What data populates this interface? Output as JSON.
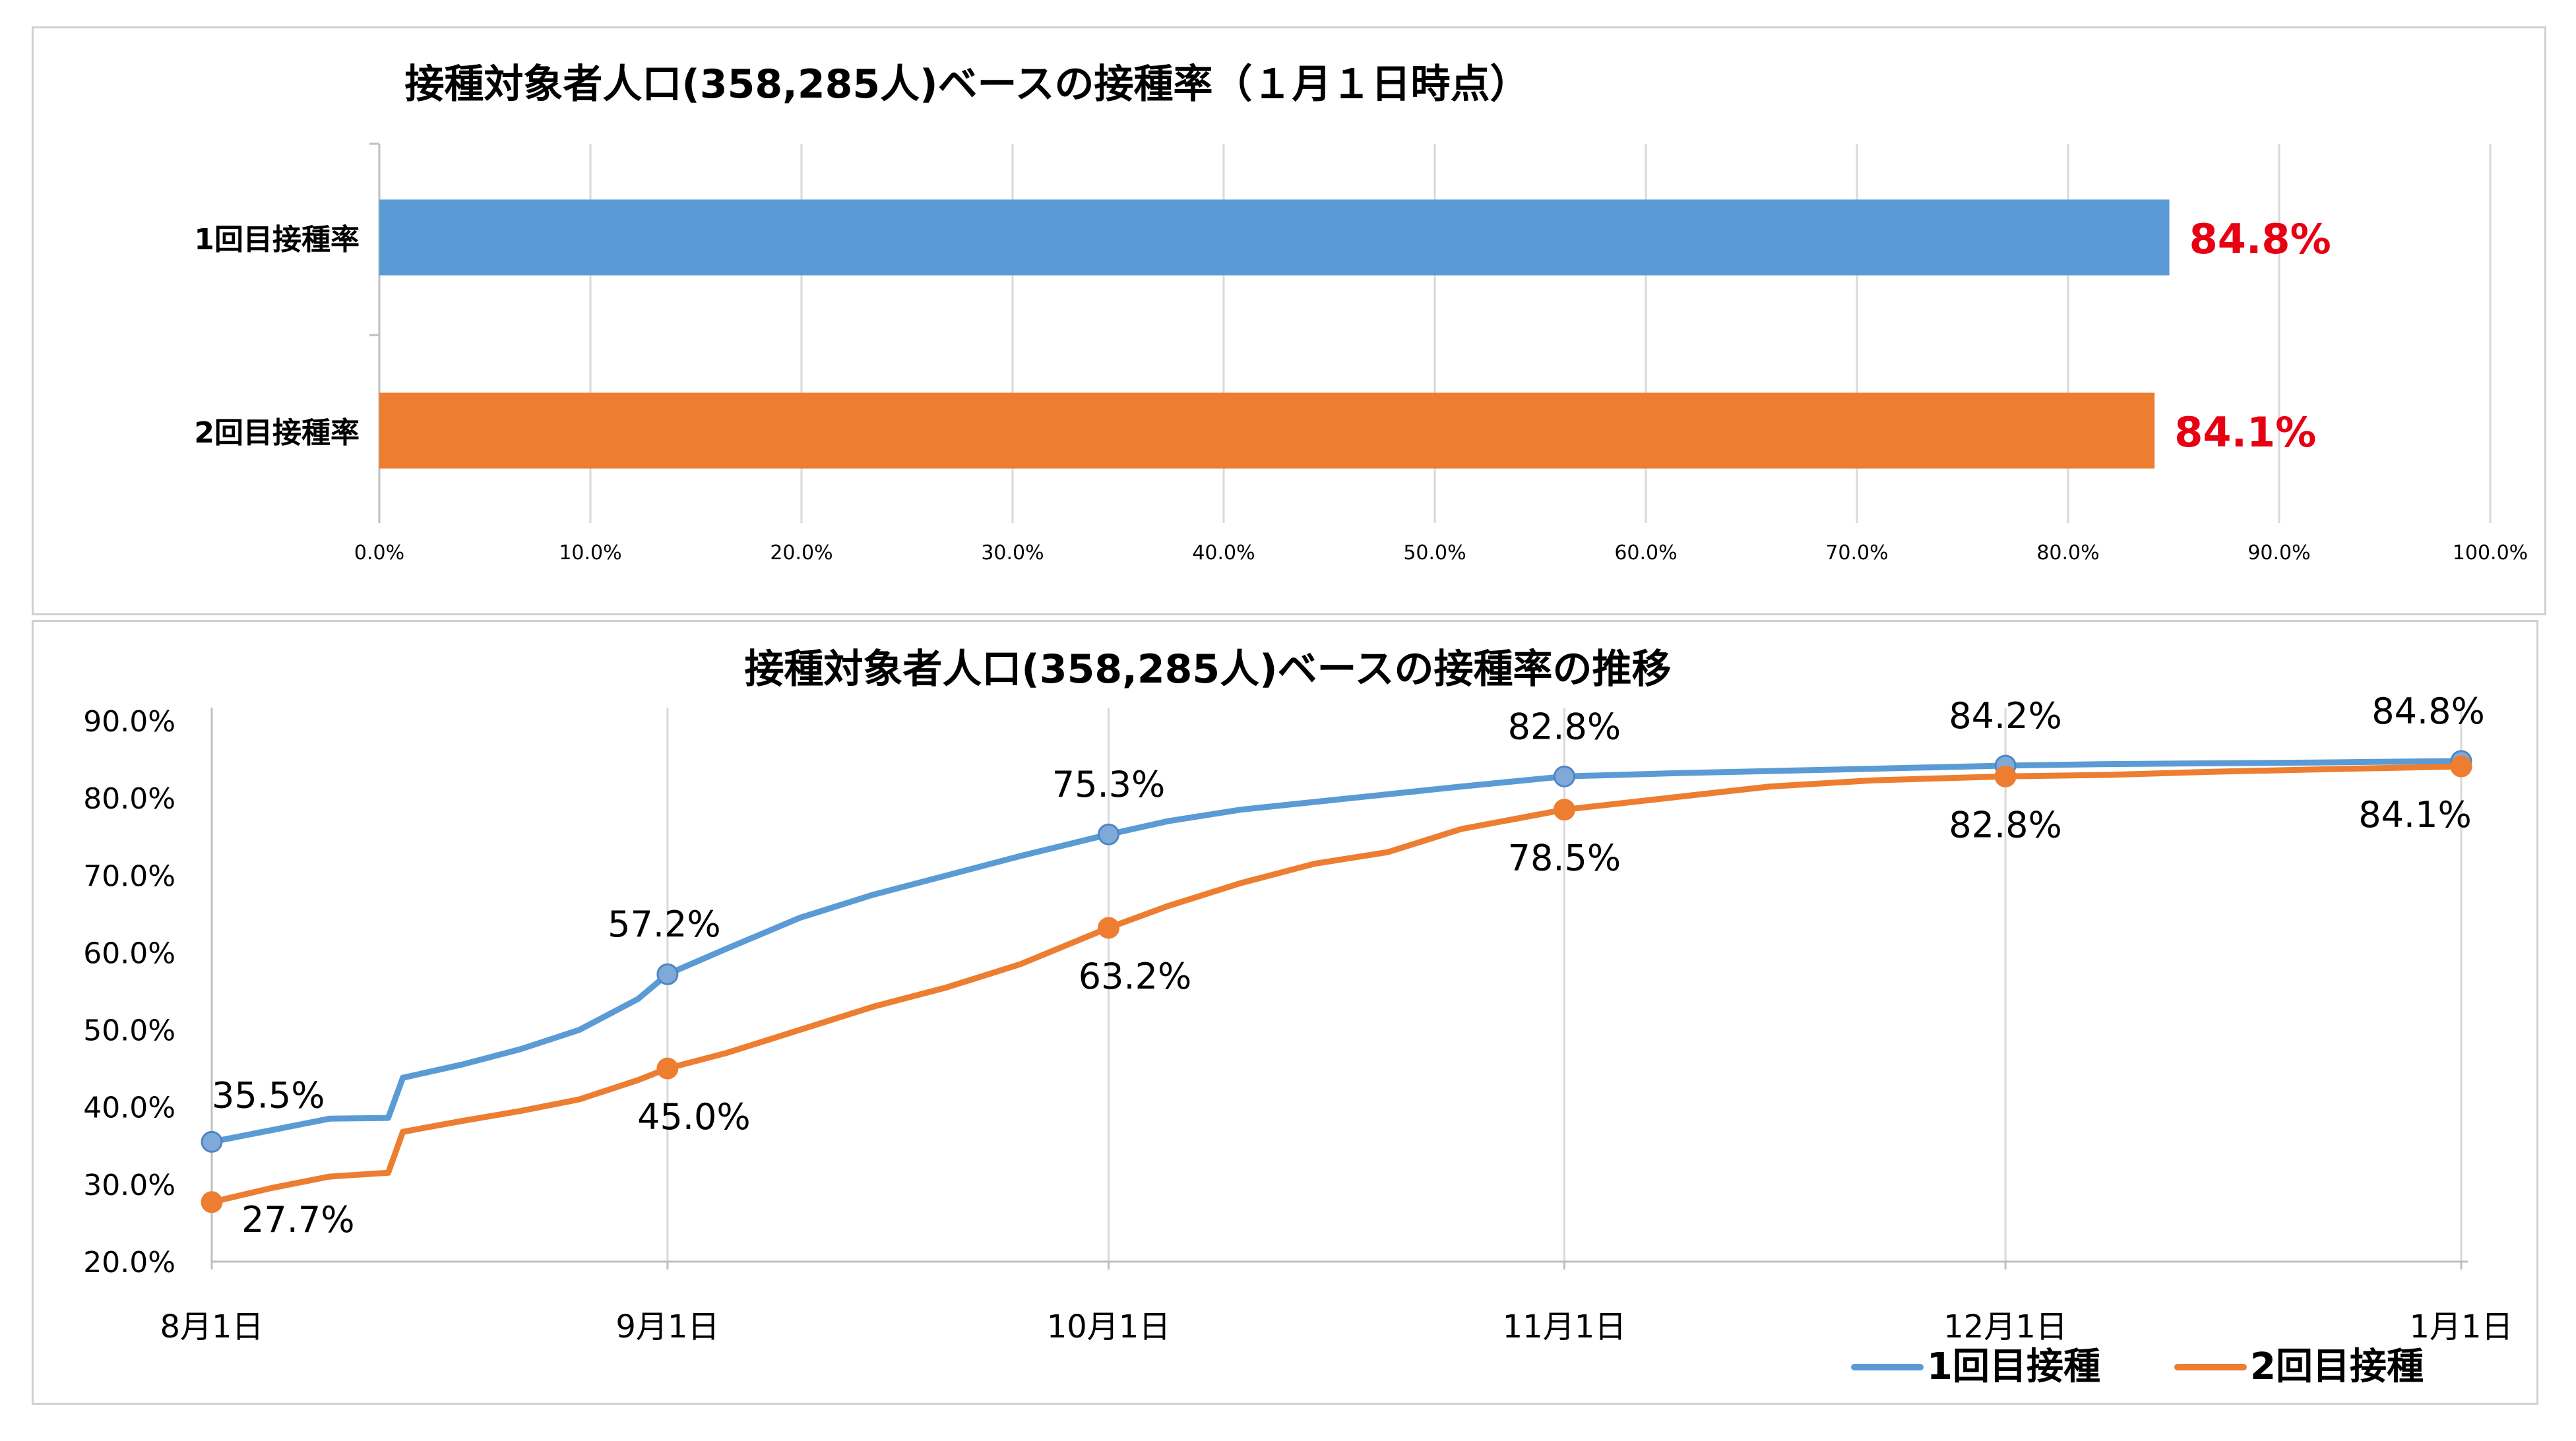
{
  "chart_data": [
    {
      "type": "bar",
      "orientation": "horizontal",
      "title": "接種対象者人口(358,285人)ベースの接種率（１月１日時点）",
      "categories": [
        "1回目接種率",
        "2回目接種率"
      ],
      "values": [
        84.8,
        84.1
      ],
      "value_labels": [
        "84.8%",
        "84.1%"
      ],
      "colors": [
        "#5b9bd5",
        "#ed7d31"
      ],
      "value_label_color": "#e60012",
      "xlim": [
        0,
        100
      ],
      "x_ticks": [
        "0.0%",
        "10.0%",
        "20.0%",
        "30.0%",
        "40.0%",
        "50.0%",
        "60.0%",
        "70.0%",
        "80.0%",
        "90.0%",
        "100.0%"
      ],
      "grid": true
    },
    {
      "type": "line",
      "title": "接種対象者人口(358,285人)ベースの接種率の推移",
      "x_tick_labels": [
        "8月1日",
        "9月1日",
        "10月1日",
        "11月1日",
        "12月1日",
        "1月1日"
      ],
      "y_ticks": [
        "20.0%",
        "30.0%",
        "40.0%",
        "50.0%",
        "60.0%",
        "70.0%",
        "80.0%",
        "90.0%"
      ],
      "ylim": [
        20,
        90
      ],
      "grid": "vertical",
      "legend_position": "bottom-right",
      "series": [
        {
          "name": "1回目接種",
          "color": "#5b9bd5",
          "x": [
            "8/1",
            "8/5",
            "8/9",
            "8/13",
            "8/14",
            "8/18",
            "8/22",
            "8/26",
            "8/30",
            "9/1",
            "9/5",
            "9/10",
            "9/15",
            "9/20",
            "9/25",
            "10/1",
            "10/5",
            "10/10",
            "10/15",
            "10/20",
            "10/25",
            "11/1",
            "11/8",
            "11/15",
            "11/22",
            "12/1",
            "12/8",
            "12/15",
            "12/22",
            "1/1"
          ],
          "values": [
            35.5,
            37.0,
            38.5,
            38.6,
            43.8,
            45.5,
            47.5,
            50.0,
            54.0,
            57.2,
            60.5,
            64.5,
            67.5,
            70.0,
            72.5,
            75.3,
            77.0,
            78.5,
            79.5,
            80.5,
            81.5,
            82.8,
            83.2,
            83.5,
            83.8,
            84.2,
            84.4,
            84.5,
            84.6,
            84.8
          ],
          "marker_labels": [
            {
              "x": "8/1",
              "value": 35.5,
              "label": "35.5%"
            },
            {
              "x": "9/1",
              "value": 57.2,
              "label": "57.2%"
            },
            {
              "x": "10/1",
              "value": 75.3,
              "label": "75.3%"
            },
            {
              "x": "11/1",
              "value": 82.8,
              "label": "82.8%"
            },
            {
              "x": "12/1",
              "value": 84.2,
              "label": "84.2%"
            },
            {
              "x": "1/1",
              "value": 84.8,
              "label": "84.8%"
            }
          ]
        },
        {
          "name": "2回目接種",
          "color": "#ed7d31",
          "x": [
            "8/1",
            "8/5",
            "8/9",
            "8/13",
            "8/14",
            "8/18",
            "8/22",
            "8/26",
            "8/30",
            "9/1",
            "9/5",
            "9/10",
            "9/15",
            "9/20",
            "9/25",
            "10/1",
            "10/5",
            "10/10",
            "10/15",
            "10/20",
            "10/25",
            "11/1",
            "11/8",
            "11/15",
            "11/22",
            "12/1",
            "12/8",
            "12/15",
            "12/22",
            "1/1"
          ],
          "values": [
            27.7,
            29.5,
            31.0,
            31.5,
            36.8,
            38.2,
            39.5,
            41.0,
            43.5,
            45.0,
            47.0,
            50.0,
            53.0,
            55.5,
            58.5,
            63.2,
            66.0,
            69.0,
            71.5,
            73.0,
            76.0,
            78.5,
            80.0,
            81.5,
            82.3,
            82.8,
            83.0,
            83.4,
            83.7,
            84.1
          ],
          "marker_labels": [
            {
              "x": "8/1",
              "value": 27.7,
              "label": "27.7%"
            },
            {
              "x": "9/1",
              "value": 45.0,
              "label": "45.0%"
            },
            {
              "x": "10/1",
              "value": 63.2,
              "label": "63.2%"
            },
            {
              "x": "11/1",
              "value": 78.5,
              "label": "78.5%"
            },
            {
              "x": "12/1",
              "value": 82.8,
              "label": "82.8%"
            },
            {
              "x": "1/1",
              "value": 84.1,
              "label": "84.1%"
            }
          ]
        }
      ]
    }
  ]
}
